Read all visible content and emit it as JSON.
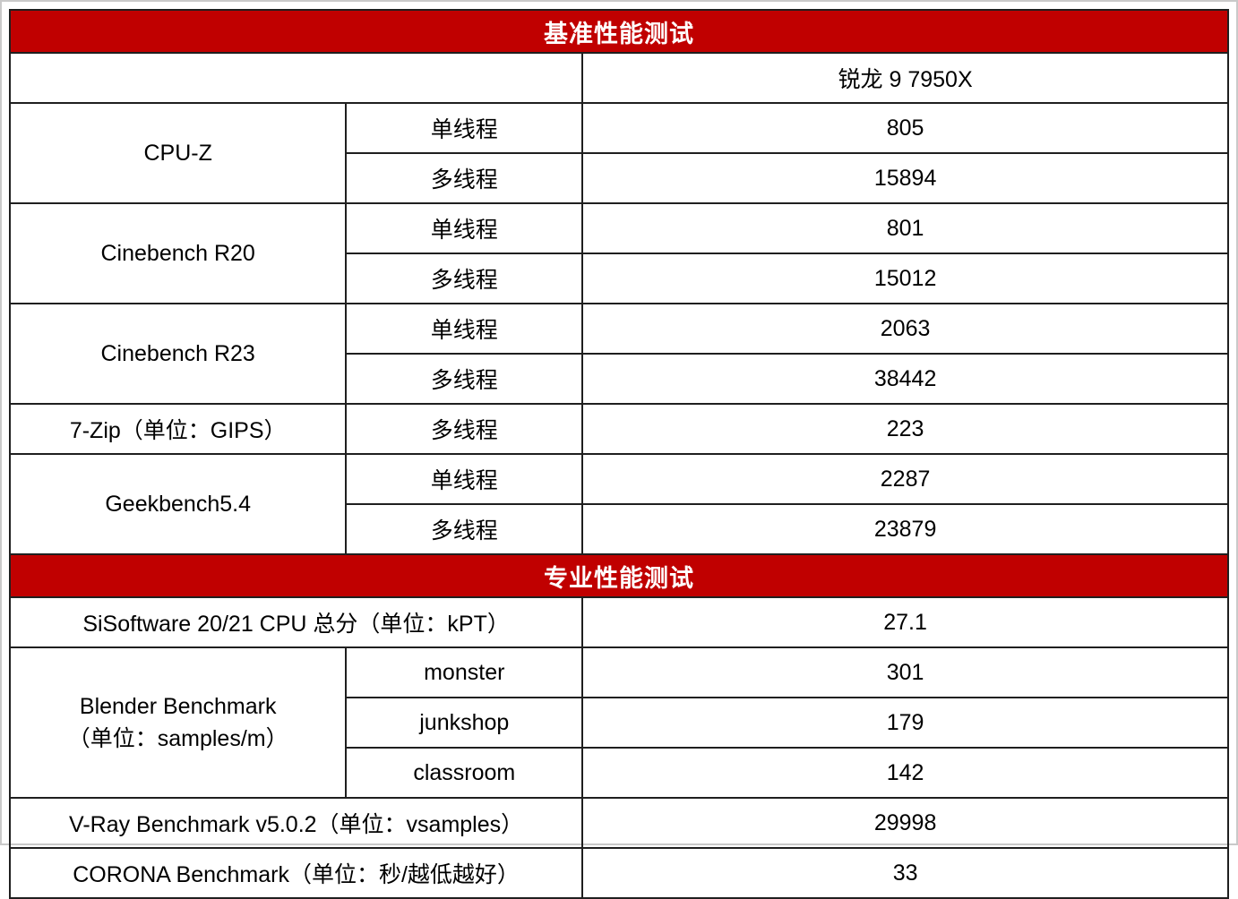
{
  "chart_data": {
    "type": "table",
    "cpu": "锐龙 9 7950X",
    "benchmark_section": {
      "title": "基准性能测试",
      "groups": [
        {
          "name": "CPU-Z",
          "rows": [
            {
              "label": "单线程",
              "value": 805
            },
            {
              "label": "多线程",
              "value": 15894
            }
          ]
        },
        {
          "name": "Cinebench R20",
          "rows": [
            {
              "label": "单线程",
              "value": 801
            },
            {
              "label": "多线程",
              "value": 15012
            }
          ]
        },
        {
          "name": "Cinebench R23",
          "rows": [
            {
              "label": "单线程",
              "value": 2063
            },
            {
              "label": "多线程",
              "value": 38442
            }
          ]
        },
        {
          "name": "7-Zip（单位：GIPS）",
          "rows": [
            {
              "label": "多线程",
              "value": 223
            }
          ]
        },
        {
          "name": "Geekbench5.4",
          "rows": [
            {
              "label": "单线程",
              "value": 2287
            },
            {
              "label": "多线程",
              "value": 23879
            }
          ]
        }
      ]
    },
    "professional_section": {
      "title": "专业性能测试",
      "sisoftware": {
        "name": "SiSoftware 20/21 CPU 总分（单位：kPT）",
        "value": 27.1
      },
      "blender": {
        "name_line1": "Blender Benchmark",
        "name_line2": "（单位：samples/m）",
        "rows": [
          {
            "label": "monster",
            "value": 301
          },
          {
            "label": "junkshop",
            "value": 179
          },
          {
            "label": "classroom",
            "value": 142
          }
        ]
      },
      "vray": {
        "name": "V-Ray Benchmark v5.0.2（单位：vsamples）",
        "value": 29998
      },
      "corona": {
        "name": "CORONA Benchmark（单位：秒/越低越好）",
        "value": 33
      }
    }
  },
  "colors": {
    "header_bg": "#C00000",
    "header_text": "#FFFFFF",
    "border": "#1F1F1F"
  }
}
